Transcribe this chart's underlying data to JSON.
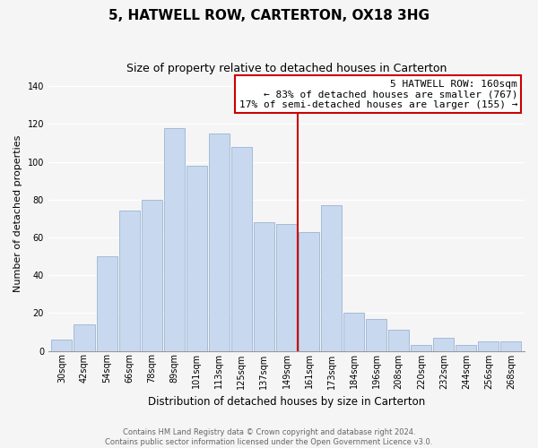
{
  "title": "5, HATWELL ROW, CARTERTON, OX18 3HG",
  "subtitle": "Size of property relative to detached houses in Carterton",
  "xlabel": "Distribution of detached houses by size in Carterton",
  "ylabel": "Number of detached properties",
  "bin_labels": [
    "30sqm",
    "42sqm",
    "54sqm",
    "66sqm",
    "78sqm",
    "89sqm",
    "101sqm",
    "113sqm",
    "125sqm",
    "137sqm",
    "149sqm",
    "161sqm",
    "173sqm",
    "184sqm",
    "196sqm",
    "208sqm",
    "220sqm",
    "232sqm",
    "244sqm",
    "256sqm",
    "268sqm"
  ],
  "bar_heights": [
    6,
    14,
    50,
    74,
    80,
    118,
    98,
    115,
    108,
    68,
    67,
    63,
    77,
    20,
    17,
    11,
    3,
    7,
    3,
    5,
    5
  ],
  "bar_color": "#c8d9ef",
  "bar_edge_color": "#9ab3d5",
  "highlight_bar_index": 11,
  "annotation_title": "5 HATWELL ROW: 160sqm",
  "annotation_line1": "← 83% of detached houses are smaller (767)",
  "annotation_line2": "17% of semi-detached houses are larger (155) →",
  "annotation_box_color": "#ffffff",
  "annotation_border_color": "#cc0000",
  "vline_color": "#cc0000",
  "ylim": [
    0,
    145
  ],
  "yticks": [
    0,
    20,
    40,
    60,
    80,
    100,
    120,
    140
  ],
  "footnote1": "Contains HM Land Registry data © Crown copyright and database right 2024.",
  "footnote2": "Contains public sector information licensed under the Open Government Licence v3.0.",
  "background_color": "#f5f5f5",
  "grid_color": "#ffffff",
  "title_fontsize": 11,
  "subtitle_fontsize": 9,
  "axis_label_fontsize": 8.5,
  "ylabel_fontsize": 8,
  "tick_fontsize": 7,
  "annotation_fontsize": 8,
  "footnote_fontsize": 6
}
